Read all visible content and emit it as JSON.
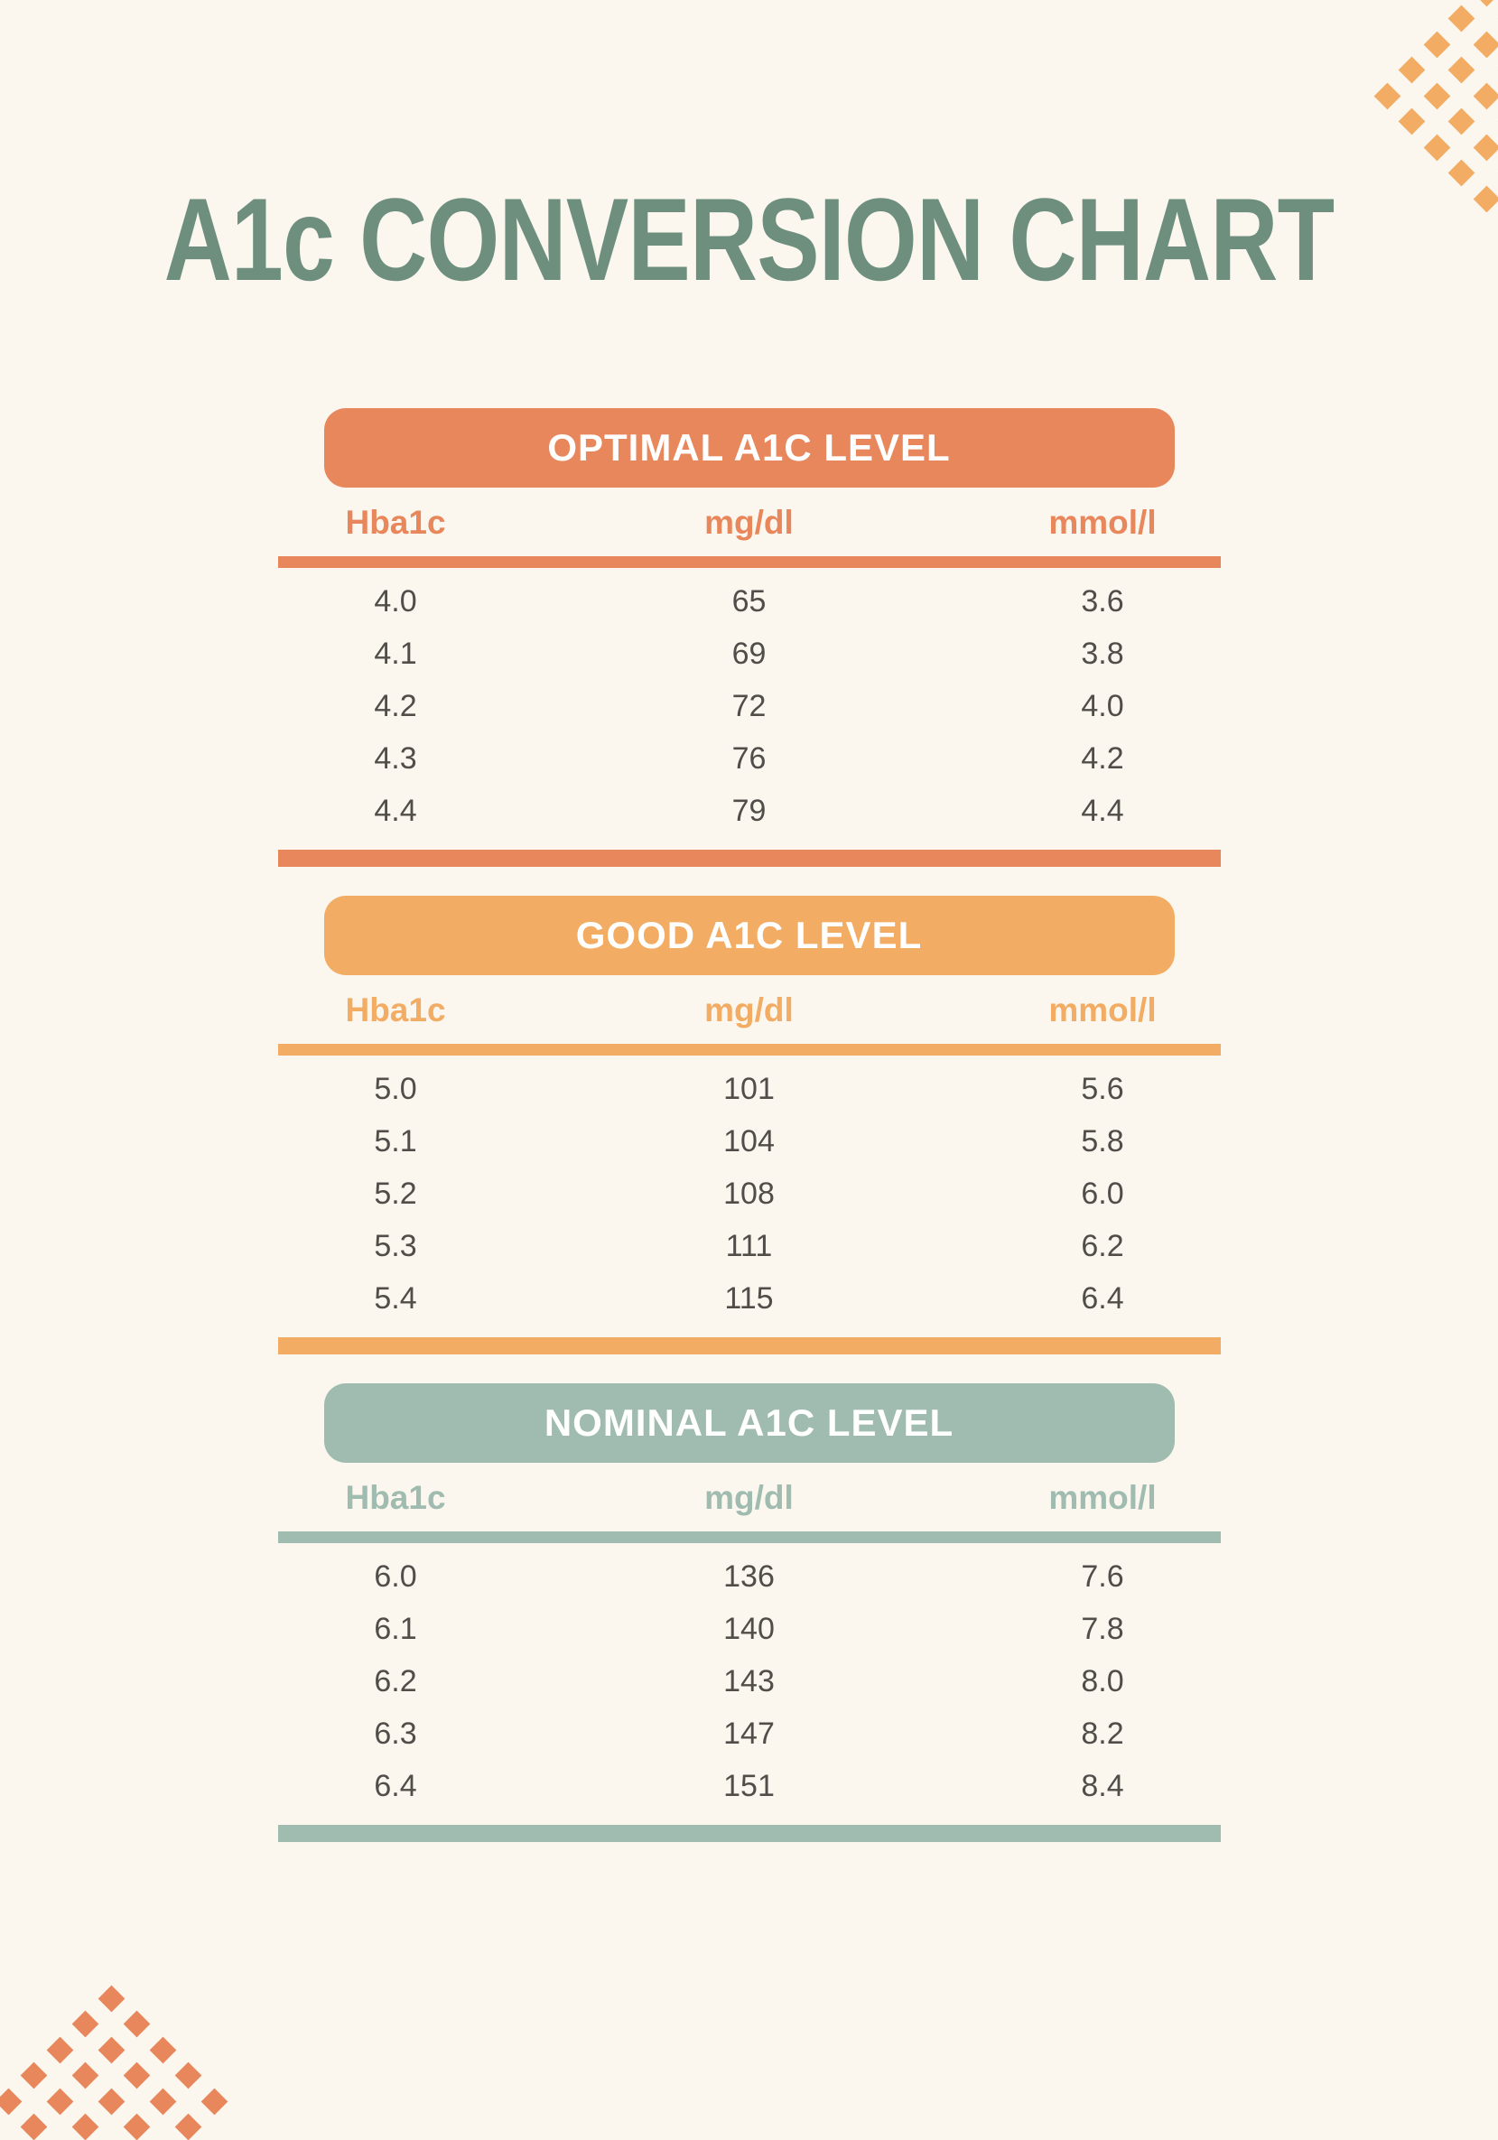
{
  "page": {
    "title": "A1c CONVERSION CHART"
  },
  "palette": {
    "background": "#FBF7EF",
    "title_green": "#6E8F7D",
    "optimal_salmon": "#E8875C",
    "good_amber": "#F2AC63",
    "nominal_sage": "#A0BBAF",
    "data_text": "#514D49",
    "banner_text": "#FFFFFF"
  },
  "columns": [
    "Hba1c",
    "mg/dl",
    "mmol/l"
  ],
  "sections": [
    {
      "title": "OPTIMAL A1C LEVEL",
      "accent": "#E8875C",
      "rows": [
        [
          "4.0",
          "65",
          "3.6"
        ],
        [
          "4.1",
          "69",
          "3.8"
        ],
        [
          "4.2",
          "72",
          "4.0"
        ],
        [
          "4.3",
          "76",
          "4.2"
        ],
        [
          "4.4",
          "79",
          "4.4"
        ]
      ]
    },
    {
      "title": "GOOD A1C LEVEL",
      "accent": "#F2AC63",
      "rows": [
        [
          "5.0",
          "101",
          "5.6"
        ],
        [
          "5.1",
          "104",
          "5.8"
        ],
        [
          "5.2",
          "108",
          "6.0"
        ],
        [
          "5.3",
          "111",
          "6.2"
        ],
        [
          "5.4",
          "115",
          "6.4"
        ]
      ]
    },
    {
      "title": "NOMINAL A1C LEVEL",
      "accent": "#A0BBAF",
      "rows": [
        [
          "6.0",
          "136",
          "7.6"
        ],
        [
          "6.1",
          "140",
          "7.8"
        ],
        [
          "6.2",
          "143",
          "8.0"
        ],
        [
          "6.3",
          "147",
          "8.2"
        ],
        [
          "6.4",
          "151",
          "8.4"
        ]
      ]
    }
  ],
  "decor": {
    "top_right_diamond_color": "#F2AC63",
    "bottom_left_diamond_color": "#E8875C"
  }
}
